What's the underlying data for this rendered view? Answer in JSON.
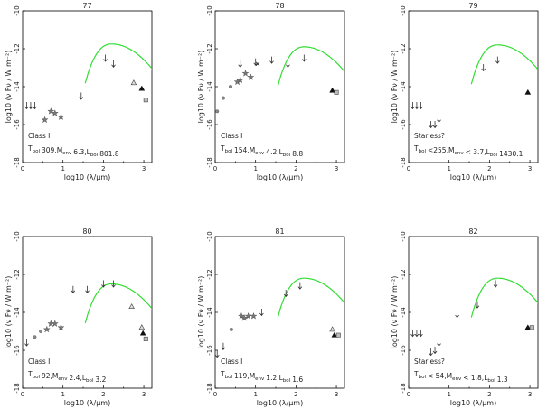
{
  "figure": {
    "xlabel": "log10 (λ/μm)",
    "ylabel": "log10 (ν Fν / W m⁻²)"
  },
  "chart_data": [
    {
      "type": "scatter",
      "title": "77",
      "xlim": [
        0,
        3.2
      ],
      "ylim": [
        -18,
        -10
      ],
      "xticks": [
        0,
        1,
        2,
        3
      ],
      "yticks": [
        -18,
        -16,
        -14,
        -12,
        -10
      ],
      "xlabel": "log10 (λ/μm)",
      "ylabel": "log10 (ν Fν / W m⁻²)",
      "class_label": "Class I",
      "params_text": {
        "Tbol": "309,",
        "Menv": "6.3,",
        "Lbol": "801.8"
      },
      "model_peak": {
        "x": 2.2,
        "y": -11.75
      },
      "stars": [
        [
          0.55,
          -15.75
        ],
        [
          0.7,
          -15.3
        ],
        [
          0.8,
          -15.4
        ],
        [
          0.95,
          -15.6
        ]
      ],
      "upper_limits": [
        [
          0.1,
          -15.0
        ],
        [
          0.2,
          -15.0
        ],
        [
          0.3,
          -15.0
        ],
        [
          1.45,
          -14.5
        ],
        [
          2.05,
          -12.5
        ],
        [
          2.25,
          -12.8
        ]
      ],
      "triangles_open": [
        [
          2.75,
          -13.8
        ]
      ],
      "triangles_filled": [
        [
          2.95,
          -14.1
        ]
      ],
      "squares": [
        [
          3.05,
          -14.7
        ]
      ],
      "circles": []
    },
    {
      "type": "scatter",
      "title": "78",
      "xlim": [
        0,
        3.2
      ],
      "ylim": [
        -18,
        -10
      ],
      "xticks": [
        0,
        1,
        2,
        3
      ],
      "yticks": [
        -18,
        -16,
        -14,
        -12,
        -10
      ],
      "xlabel": "log10 (λ/μm)",
      "ylabel": "log10 (ν Fν / W m⁻²)",
      "class_label": "Class I",
      "params_text": {
        "Tbol": "154,",
        "Menv": "4.2,",
        "Lbol": "8.8"
      },
      "model_peak": {
        "x": 2.2,
        "y": -11.9
      },
      "stars": [
        [
          0.55,
          -13.75
        ],
        [
          0.62,
          -13.65
        ],
        [
          0.75,
          -13.3
        ],
        [
          0.88,
          -13.5
        ]
      ],
      "upper_limits": [
        [
          1.0,
          -12.7
        ],
        [
          1.4,
          -12.6
        ],
        [
          1.8,
          -12.8
        ],
        [
          2.2,
          -12.5
        ],
        [
          0.62,
          -12.8
        ]
      ],
      "triangles_open": [],
      "triangles_filled": [
        [
          2.9,
          -14.2
        ]
      ],
      "squares": [
        [
          3.0,
          -14.3
        ]
      ],
      "circles": [
        [
          0.05,
          -15.3
        ],
        [
          0.2,
          -14.6
        ],
        [
          0.38,
          -14.0
        ]
      ],
      "crosses": [
        [
          1.05,
          -12.8
        ]
      ]
    },
    {
      "type": "scatter",
      "title": "79",
      "xlim": [
        0,
        3.2
      ],
      "ylim": [
        -18,
        -10
      ],
      "xticks": [
        0,
        1,
        2,
        3
      ],
      "yticks": [
        -18,
        -16,
        -14,
        -12,
        -10
      ],
      "xlabel": "log10 (λ/μm)",
      "ylabel": "log10 (ν Fν / W m⁻²)",
      "class_label": "Starless?",
      "params_text": {
        "Tbol": "<255,",
        "Menv": "< 3.7,",
        "Lbol": "1430.1"
      },
      "model_peak": {
        "x": 2.2,
        "y": -11.8
      },
      "stars": [],
      "upper_limits": [
        [
          0.1,
          -15.0
        ],
        [
          0.2,
          -15.0
        ],
        [
          0.3,
          -15.0
        ],
        [
          0.55,
          -16.0
        ],
        [
          0.65,
          -16.0
        ],
        [
          0.75,
          -15.7
        ],
        [
          1.85,
          -13.0
        ],
        [
          2.2,
          -12.6
        ]
      ],
      "triangles_open": [],
      "triangles_filled": [
        [
          2.95,
          -14.3
        ]
      ],
      "squares": [],
      "circles": []
    },
    {
      "type": "scatter",
      "title": "80",
      "xlim": [
        0,
        3.2
      ],
      "ylim": [
        -18,
        -10
      ],
      "xticks": [
        0,
        1,
        2,
        3
      ],
      "yticks": [
        -18,
        -16,
        -14,
        -12,
        -10
      ],
      "xlabel": "log10 (λ/μm)",
      "ylabel": "log10 (ν Fν / W m⁻²)",
      "class_label": "Class I",
      "params_text": {
        "Tbol": "92,",
        "Menv": "2.4,",
        "Lbol": "3.2"
      },
      "model_peak": {
        "x": 2.2,
        "y": -12.5
      },
      "stars": [
        [
          0.6,
          -14.9
        ],
        [
          0.7,
          -14.6
        ],
        [
          0.8,
          -14.6
        ],
        [
          0.95,
          -14.8
        ]
      ],
      "upper_limits": [
        [
          0.1,
          -15.6
        ],
        [
          1.25,
          -12.8
        ],
        [
          1.6,
          -12.8
        ],
        [
          2.0,
          -12.5
        ],
        [
          2.25,
          -12.5
        ]
      ],
      "triangles_open": [
        [
          2.7,
          -13.7
        ],
        [
          2.95,
          -14.8
        ]
      ],
      "triangles_filled": [
        [
          2.98,
          -15.1
        ]
      ],
      "squares": [
        [
          3.05,
          -15.4
        ]
      ],
      "circles": [
        [
          0.3,
          -15.3
        ],
        [
          0.45,
          -15.0
        ]
      ]
    },
    {
      "type": "scatter",
      "title": "81",
      "xlim": [
        0,
        3.2
      ],
      "ylim": [
        -18,
        -10
      ],
      "xticks": [
        0,
        1,
        2,
        3
      ],
      "yticks": [
        -18,
        -16,
        -14,
        -12,
        -10
      ],
      "xlabel": "log10 (λ/μm)",
      "ylabel": "log10 (ν Fν / W m⁻²)",
      "class_label": "Class I",
      "params_text": {
        "Tbol": "119,",
        "Menv": "1.2,",
        "Lbol": "1.6"
      },
      "model_peak": {
        "x": 2.2,
        "y": -12.2
      },
      "stars": [
        [
          0.65,
          -14.2
        ],
        [
          0.72,
          -14.3
        ],
        [
          0.82,
          -14.2
        ],
        [
          0.95,
          -14.2
        ]
      ],
      "upper_limits": [
        [
          0.05,
          -16.2
        ],
        [
          0.2,
          -15.8
        ],
        [
          1.15,
          -14.0
        ],
        [
          1.75,
          -13.0
        ],
        [
          2.1,
          -12.6
        ]
      ],
      "triangles_open": [
        [
          2.9,
          -14.9
        ]
      ],
      "triangles_filled": [
        [
          2.95,
          -15.2
        ]
      ],
      "squares": [
        [
          3.05,
          -15.2
        ]
      ],
      "circles": [
        [
          0.4,
          -14.9
        ]
      ]
    },
    {
      "type": "scatter",
      "title": "82",
      "xlim": [
        0,
        3.2
      ],
      "ylim": [
        -18,
        -10
      ],
      "xticks": [
        0,
        1,
        2,
        3
      ],
      "yticks": [
        -18,
        -16,
        -14,
        -12,
        -10
      ],
      "xlabel": "log10 (λ/μm)",
      "ylabel": "log10 (ν Fν / W m⁻²)",
      "class_label": "Starless?",
      "params_text": {
        "Tbol": "< 54,",
        "Menv": "< 1.8,",
        "Lbol": "1.3"
      },
      "model_peak": {
        "x": 2.2,
        "y": -12.2
      },
      "stars": [],
      "upper_limits": [
        [
          0.1,
          -15.1
        ],
        [
          0.2,
          -15.1
        ],
        [
          0.3,
          -15.1
        ],
        [
          0.55,
          -16.1
        ],
        [
          0.65,
          -16.0
        ],
        [
          0.75,
          -15.6
        ],
        [
          1.2,
          -14.1
        ],
        [
          1.7,
          -13.6
        ],
        [
          2.15,
          -12.5
        ]
      ],
      "triangles_open": [],
      "triangles_filled": [
        [
          2.95,
          -14.8
        ]
      ],
      "squares": [
        [
          3.05,
          -14.8
        ]
      ],
      "circles": []
    }
  ]
}
